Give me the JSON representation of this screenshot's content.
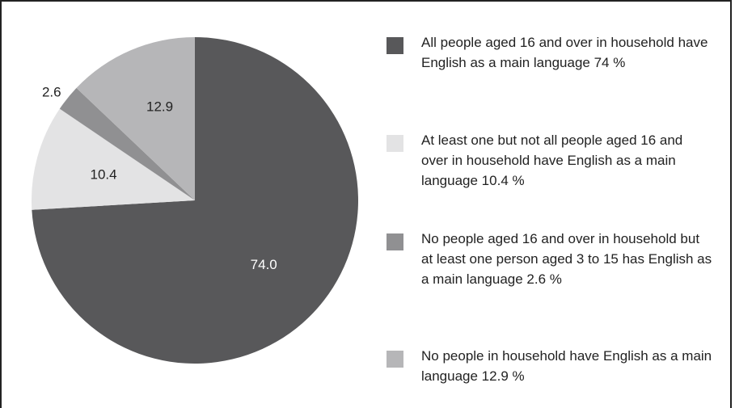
{
  "chart_data": {
    "type": "pie",
    "start_angle_deg": 0,
    "direction": "clockwise",
    "slices": [
      {
        "label": "All people aged 16 and over in household have English as a main language 74 %",
        "value": 74.0,
        "value_label": "74.0",
        "color": "#58585a",
        "label_color": "#ffffff"
      },
      {
        "label": "At least one but not all people aged 16 and over in household have English as a main language 10.4 %",
        "value": 10.4,
        "value_label": "10.4",
        "color": "#e3e3e4",
        "label_color": "#222222"
      },
      {
        "label": "No people aged 16 and over in household but at least one person aged 3 to 15 has English as a main language 2.6 %",
        "value": 2.6,
        "value_label": "2.6",
        "color": "#909092",
        "label_color": "#222222"
      },
      {
        "label": "No people in household have English as a main language 12.9 %",
        "value": 12.9,
        "value_label": "12.9",
        "color": "#b6b6b8",
        "label_color": "#222222"
      }
    ],
    "legend_position": "right"
  }
}
